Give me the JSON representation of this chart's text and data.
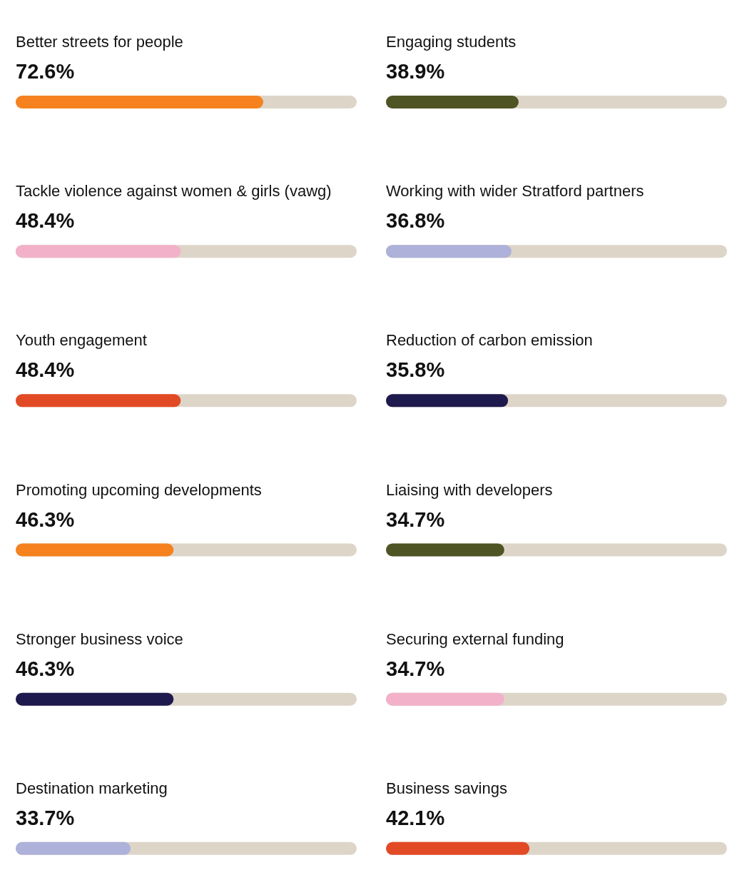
{
  "chart_data": [
    {
      "type": "bar",
      "orientation": "horizontal",
      "categories": [
        "Better streets for people",
        "Tackle violence against women & girls (vawg)",
        "Youth engagement",
        "Promoting upcoming developments",
        "Stronger business voice",
        "Destination marketing"
      ],
      "values": [
        72.6,
        48.4,
        48.4,
        46.3,
        46.3,
        33.7
      ],
      "colors": [
        "#f5821f",
        "#f2b1c9",
        "#e24a26",
        "#f5821f",
        "#1f1a4d",
        "#aeb1d9"
      ],
      "value_labels": [
        "72.6%",
        "48.4%",
        "48.4%",
        "46.3%",
        "46.3%",
        "33.7%"
      ],
      "xlim": [
        0,
        100
      ]
    },
    {
      "type": "bar",
      "orientation": "horizontal",
      "categories": [
        "Engaging students",
        "Working with wider Stratford partners",
        "Reduction of carbon emission",
        "Liaising with developers",
        "Securing external funding",
        "Business savings"
      ],
      "values": [
        38.9,
        36.8,
        35.8,
        34.7,
        34.7,
        42.1
      ],
      "colors": [
        "#4f5424",
        "#aeb1d9",
        "#1f1a4d",
        "#4f5424",
        "#f2b1c9",
        "#e24a26"
      ],
      "value_labels": [
        "38.9%",
        "36.8%",
        "35.8%",
        "34.7%",
        "34.7%",
        "42.1%"
      ],
      "xlim": [
        0,
        100
      ]
    }
  ]
}
